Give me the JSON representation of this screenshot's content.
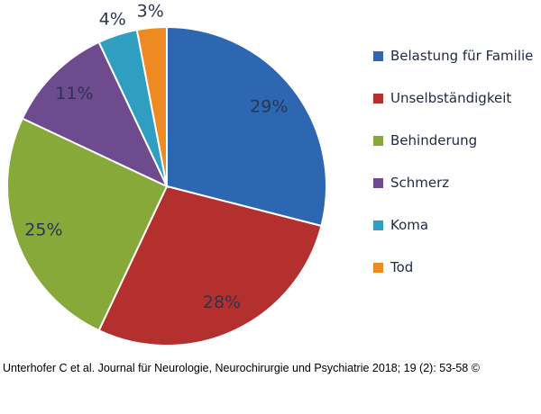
{
  "chart_data": {
    "type": "pie",
    "start_angle_deg": 0,
    "direction": "clockwise",
    "slices": [
      {
        "label": "Belastung für Familie",
        "value": 29,
        "display": "29%",
        "color": "#2e67b1"
      },
      {
        "label": "Unselbständigkeit",
        "value": 28,
        "display": "28%",
        "color": "#b3302f"
      },
      {
        "label": "Behinderung",
        "value": 25,
        "display": "25%",
        "color": "#87a93a"
      },
      {
        "label": "Schmerz",
        "value": 11,
        "display": "11%",
        "color": "#6e4a8e"
      },
      {
        "label": "Koma",
        "value": 4,
        "display": "4%",
        "color": "#2f9ec0"
      },
      {
        "label": "Tod",
        "value": 3,
        "display": "3%",
        "color": "#ef8a22"
      }
    ],
    "legend_position": "right"
  },
  "caption": "Unterhofer C et al. Journal für Neurologie, Neurochirurgie und Psychiatrie 2018; 19 (2): 53-58 ©"
}
